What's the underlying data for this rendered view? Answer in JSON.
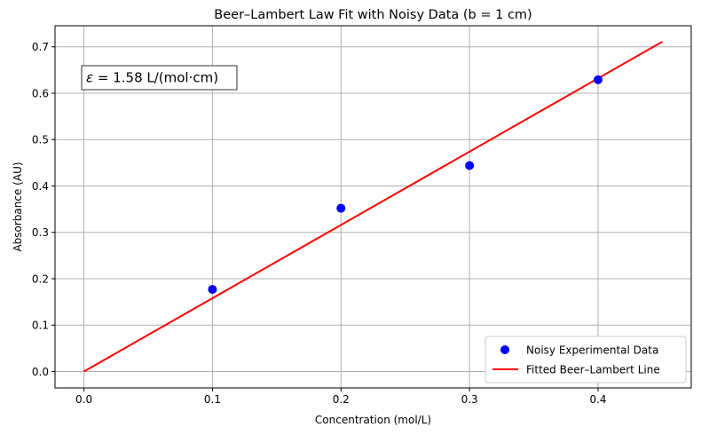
{
  "chart_data": {
    "type": "scatter",
    "title": "Beer–Lambert Law Fit with Noisy Data (b = 1 cm)",
    "xlabel": "Concentration (mol/L)",
    "ylabel": "Absorbance (AU)",
    "xlim": [
      -0.0225,
      0.4725
    ],
    "ylim": [
      -0.0355,
      0.7455
    ],
    "xticks": [
      0.0,
      0.1,
      0.2,
      0.3,
      0.4
    ],
    "xtick_labels": [
      "0.0",
      "0.1",
      "0.2",
      "0.3",
      "0.4"
    ],
    "yticks": [
      0.0,
      0.1,
      0.2,
      0.3,
      0.4,
      0.5,
      0.6,
      0.7
    ],
    "ytick_labels": [
      "0.0",
      "0.1",
      "0.2",
      "0.3",
      "0.4",
      "0.5",
      "0.6",
      "0.7"
    ],
    "grid": true,
    "legend_placement": "lower-right",
    "series": [
      {
        "name": "Noisy Experimental Data",
        "kind": "scatter",
        "color": "#0000ff",
        "x": [
          0.1,
          0.2,
          0.3,
          0.4
        ],
        "y": [
          0.177,
          0.352,
          0.444,
          0.629
        ]
      },
      {
        "name": "Fitted Beer–Lambert Line",
        "kind": "line",
        "color": "#ff0000",
        "x": [
          0.0,
          0.45
        ],
        "y": [
          0.0,
          0.711
        ]
      }
    ],
    "annotation": {
      "symbol": "ε",
      "text": " = 1.58 L/(mol·cm)"
    }
  }
}
